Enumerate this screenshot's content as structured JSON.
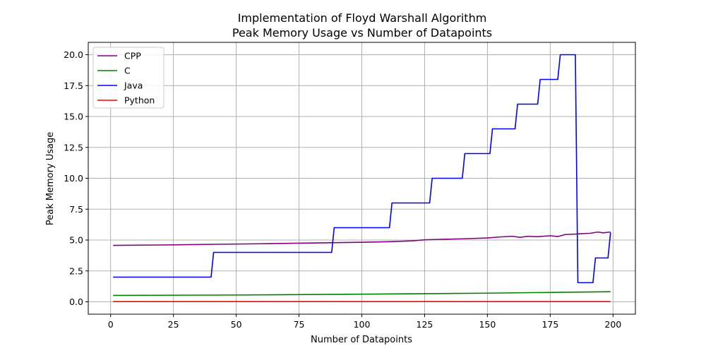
{
  "chart_data": {
    "type": "line",
    "title": "Implementation of Floyd Warshall Algorithm",
    "subtitle": "Peak Memory Usage vs Number of Datapoints",
    "xlabel": "Number of Datapoints",
    "ylabel": "Peak Memory Usage",
    "xlim": [
      -8.9,
      208.9
    ],
    "ylim": [
      -1.0,
      21.0
    ],
    "xticks": [
      "0",
      "25",
      "50",
      "75",
      "100",
      "125",
      "150",
      "175",
      "200"
    ],
    "xtick_values": [
      0,
      25,
      50,
      75,
      100,
      125,
      150,
      175,
      200
    ],
    "yticks": [
      "0.0",
      "2.5",
      "5.0",
      "7.5",
      "10.0",
      "12.5",
      "15.0",
      "17.5",
      "20.0"
    ],
    "ytick_values": [
      0,
      2.5,
      5,
      7.5,
      10,
      12.5,
      15,
      17.5,
      20
    ],
    "grid": true,
    "legend_position": "top-left",
    "series": [
      {
        "name": "CPP",
        "color": "#800080",
        "points": [
          [
            1,
            4.57
          ],
          [
            20,
            4.6
          ],
          [
            40,
            4.65
          ],
          [
            60,
            4.7
          ],
          [
            80,
            4.76
          ],
          [
            100,
            4.82
          ],
          [
            110,
            4.86
          ],
          [
            120,
            4.93
          ],
          [
            125,
            5.02
          ],
          [
            130,
            5.05
          ],
          [
            140,
            5.1
          ],
          [
            150,
            5.17
          ],
          [
            155,
            5.25
          ],
          [
            160,
            5.3
          ],
          [
            163,
            5.22
          ],
          [
            166,
            5.3
          ],
          [
            170,
            5.27
          ],
          [
            175,
            5.35
          ],
          [
            178,
            5.28
          ],
          [
            181,
            5.45
          ],
          [
            185,
            5.48
          ],
          [
            188,
            5.52
          ],
          [
            191,
            5.55
          ],
          [
            194,
            5.65
          ],
          [
            196,
            5.58
          ],
          [
            199,
            5.65
          ]
        ]
      },
      {
        "name": "C",
        "color": "#008000",
        "points": [
          [
            1,
            0.52
          ],
          [
            50,
            0.55
          ],
          [
            100,
            0.62
          ],
          [
            150,
            0.7
          ],
          [
            199,
            0.82
          ]
        ]
      },
      {
        "name": "Java",
        "color": "#0000ff",
        "points": [
          [
            1,
            2
          ],
          [
            40,
            2
          ],
          [
            41,
            4
          ],
          [
            88,
            4
          ],
          [
            89,
            6
          ],
          [
            111,
            6
          ],
          [
            112,
            8
          ],
          [
            127,
            8
          ],
          [
            128,
            10
          ],
          [
            140,
            10
          ],
          [
            141,
            12
          ],
          [
            151,
            12
          ],
          [
            152,
            14
          ],
          [
            161,
            14
          ],
          [
            162,
            16
          ],
          [
            170,
            16
          ],
          [
            171,
            18
          ],
          [
            178,
            18
          ],
          [
            179,
            20
          ],
          [
            185,
            20
          ],
          [
            186,
            1.55
          ],
          [
            192,
            1.55
          ],
          [
            193,
            3.55
          ],
          [
            198,
            3.55
          ],
          [
            199,
            5.6
          ]
        ]
      },
      {
        "name": "Python",
        "color": "#ff0000",
        "points": [
          [
            1,
            0.02
          ],
          [
            199,
            0.02
          ]
        ]
      }
    ]
  }
}
